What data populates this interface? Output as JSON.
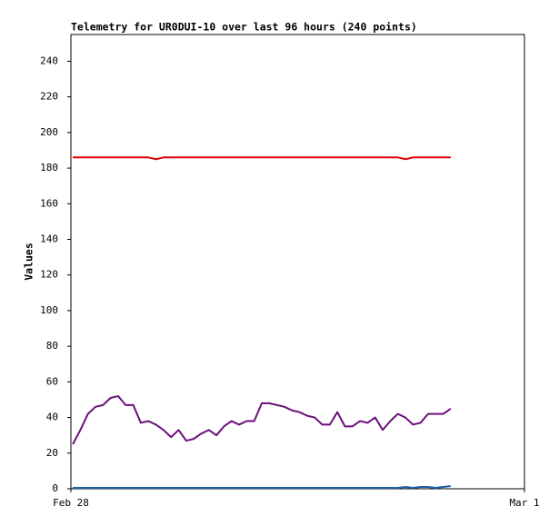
{
  "chart_data": {
    "type": "line",
    "title": "Telemetry for UR0DUI-10 over last 96 hours (240 points)",
    "y_label": "Values",
    "x": [
      0.1,
      0.5,
      0.9,
      1.3,
      1.7,
      2.1,
      2.5,
      2.9,
      3.3,
      3.7,
      4.1,
      4.5,
      4.9,
      5.3,
      5.7,
      6.1,
      6.5,
      6.9,
      7.3,
      7.7,
      8.1,
      8.5,
      8.9,
      9.3,
      9.7,
      10.1,
      10.5,
      10.9,
      11.3,
      11.7,
      12.1,
      12.5,
      12.9,
      13.3,
      13.7,
      14.1,
      14.5,
      14.9,
      15.3,
      15.7,
      16.1,
      16.5,
      16.9,
      17.3,
      17.7,
      18.1,
      18.5,
      18.9,
      19.3,
      19.7,
      20.1
    ],
    "xlim": [
      0,
      24
    ],
    "xticks": [
      {
        "value": 0,
        "label": "Feb 28"
      },
      {
        "value": 24,
        "label": "Mar 1"
      }
    ],
    "ylim": [
      0,
      255
    ],
    "yticks": [
      0,
      20,
      40,
      60,
      80,
      100,
      120,
      140,
      160,
      180,
      200,
      220,
      240
    ],
    "series": [
      {
        "color": "#e00000",
        "values": [
          186,
          186,
          186,
          186,
          186,
          186,
          186,
          186,
          186,
          186,
          186,
          185,
          186,
          186,
          186,
          186,
          186,
          186,
          186,
          186,
          186,
          186,
          186,
          186,
          186,
          186,
          186,
          186,
          186,
          186,
          186,
          186,
          186,
          186,
          186,
          186,
          186,
          186,
          186,
          186,
          186,
          186,
          186,
          186,
          185,
          186,
          186,
          186,
          186,
          186,
          186
        ]
      },
      {
        "color": "#6b0f7a",
        "values": [
          25,
          33,
          42,
          46,
          47,
          51,
          52,
          47,
          47,
          37,
          38,
          36,
          33,
          29,
          33,
          27,
          28,
          31,
          33,
          30,
          35,
          38,
          36,
          38,
          38,
          48,
          48,
          47,
          46,
          44,
          43,
          41,
          40,
          36,
          36,
          43,
          35,
          35,
          38,
          37,
          40,
          33,
          38,
          42,
          40,
          36,
          37,
          42,
          42,
          42,
          45
        ]
      },
      {
        "color": "#1f5fa8",
        "values": [
          0.5,
          0.5,
          0.5,
          0.5,
          0.5,
          0.5,
          0.5,
          0.5,
          0.5,
          0.5,
          0.5,
          0.5,
          0.5,
          0.5,
          0.5,
          0.5,
          0.5,
          0.5,
          0.5,
          0.5,
          0.5,
          0.5,
          0.5,
          0.5,
          0.5,
          0.5,
          0.5,
          0.5,
          0.5,
          0.5,
          0.5,
          0.5,
          0.5,
          0.5,
          0.5,
          0.5,
          0.5,
          0.5,
          0.5,
          0.5,
          0.5,
          0.5,
          0.5,
          0.5,
          1,
          0.5,
          1,
          1,
          0.5,
          1,
          1.5
        ]
      }
    ]
  }
}
